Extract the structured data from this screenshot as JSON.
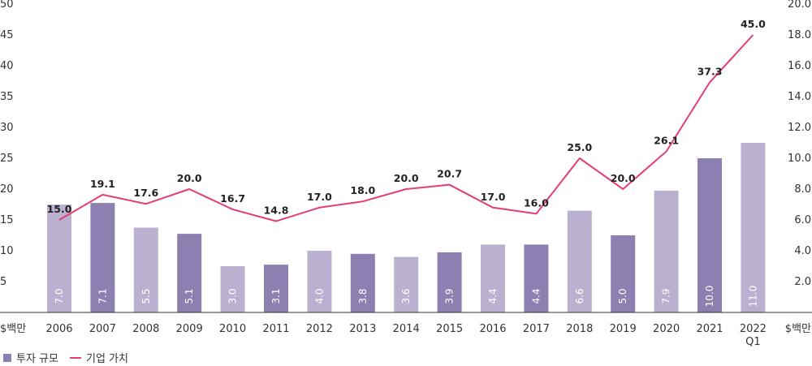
{
  "chart_data": {
    "type": "bar+line",
    "categories": [
      "2006",
      "2007",
      "2008",
      "2009",
      "2010",
      "2011",
      "2012",
      "2013",
      "2014",
      "2015",
      "2016",
      "2017",
      "2018",
      "2019",
      "2020",
      "2021",
      "2022\nQ1"
    ],
    "series": [
      {
        "name": "투자 규모",
        "type": "bar",
        "axis": "right",
        "values": [
          7.0,
          7.1,
          5.5,
          5.1,
          3.0,
          3.1,
          4.0,
          3.8,
          3.6,
          3.9,
          4.4,
          4.4,
          6.6,
          5.0,
          7.9,
          10.0,
          11.0
        ],
        "value_labels": [
          "7.0",
          "7.1",
          "5.5",
          "5.1",
          "3.0",
          "3.1",
          "4.0",
          "3.8",
          "3.6",
          "3.9",
          "4.4",
          "4.4",
          "6.6",
          "5.0",
          "7.9",
          "10.0",
          "11.0"
        ]
      },
      {
        "name": "기업 가치",
        "type": "line",
        "axis": "left",
        "values": [
          15.0,
          19.1,
          17.6,
          20.0,
          16.7,
          14.8,
          17.0,
          18.0,
          20.0,
          20.7,
          17.0,
          16.0,
          25.0,
          20.0,
          26.1,
          37.3,
          45.0
        ],
        "value_labels": [
          "15.0",
          "19.1",
          "17.6",
          "20.0",
          "16.7",
          "14.8",
          "17.0",
          "18.0",
          "20.0",
          "20.7",
          "17.0",
          "16.0",
          "25.0",
          "20.0",
          "26.1",
          "37.3",
          "45.0"
        ]
      }
    ],
    "y_left": {
      "label": "$백만",
      "min": 0,
      "max": 50,
      "ticks": [
        "5",
        "10",
        "15",
        "20",
        "25",
        "30",
        "35",
        "40",
        "45",
        "50"
      ]
    },
    "y_right": {
      "label": "$백만",
      "min": 0,
      "max": 20,
      "ticks": [
        "2.0",
        "4.0",
        "6.0",
        "8.0",
        "10.0",
        "12.0",
        "14.0",
        "16.0",
        "18.0",
        "20.0"
      ]
    },
    "grid": false,
    "legend_position": "bottom-left",
    "colors": {
      "bar_light": "#bab0cf",
      "bar_dark": "#8e7fb1",
      "line": "#e23f6f",
      "axis": "#333333"
    }
  }
}
